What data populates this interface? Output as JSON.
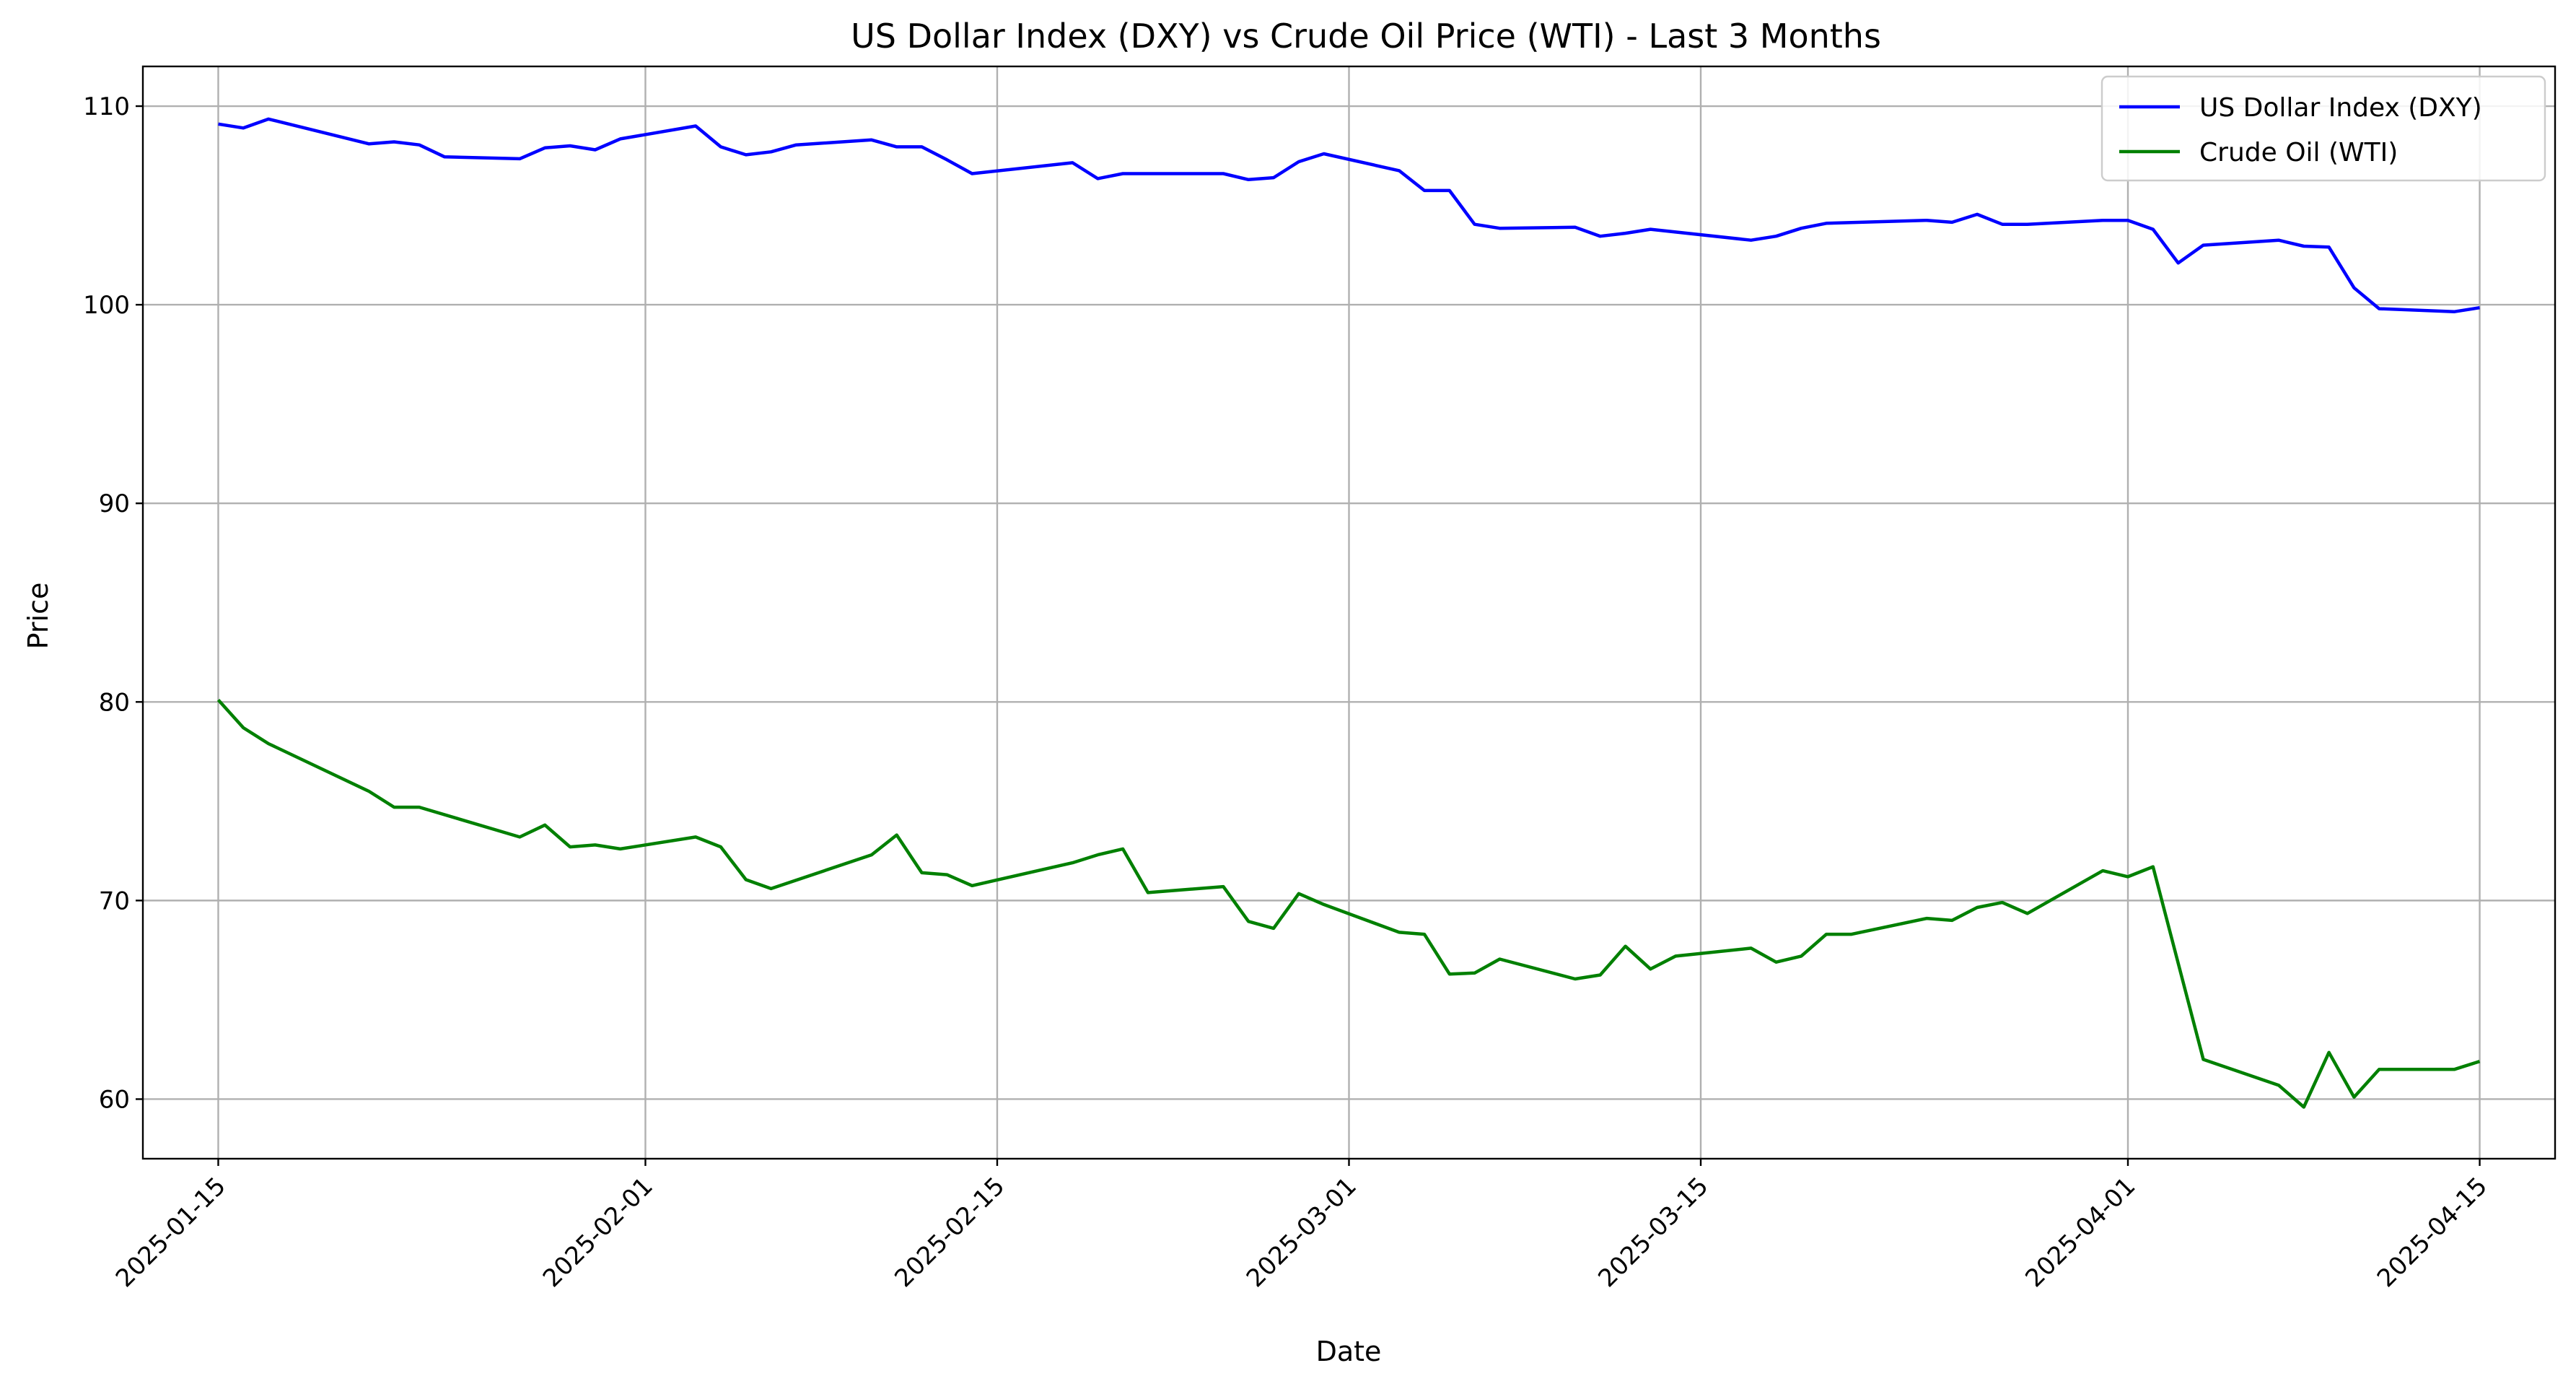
{
  "chart_data": {
    "type": "line",
    "title": "US Dollar Index (DXY) vs Crude Oil Price (WTI) - Last 3 Months",
    "xlabel": "Date",
    "ylabel": "Price",
    "xlim": [
      "2025-01-12",
      "2025-04-18"
    ],
    "ylim": [
      57,
      112
    ],
    "xticks": [
      "2025-01-15",
      "2025-02-01",
      "2025-02-15",
      "2025-03-01",
      "2025-03-15",
      "2025-04-01",
      "2025-04-15"
    ],
    "yticks": [
      60,
      70,
      80,
      90,
      100,
      110
    ],
    "grid": true,
    "legend_position": "top-right",
    "series": [
      {
        "name": "US Dollar Index (DXY)",
        "color": "#0000ff",
        "points": [
          [
            "2025-01-15",
            109.1
          ],
          [
            "2025-01-16",
            108.9
          ],
          [
            "2025-01-17",
            109.35
          ],
          [
            "2025-01-21",
            108.1
          ],
          [
            "2025-01-22",
            108.2
          ],
          [
            "2025-01-23",
            108.05
          ],
          [
            "2025-01-24",
            107.45
          ],
          [
            "2025-01-27",
            107.35
          ],
          [
            "2025-01-28",
            107.9
          ],
          [
            "2025-01-29",
            108.0
          ],
          [
            "2025-01-30",
            107.8
          ],
          [
            "2025-01-31",
            108.35
          ],
          [
            "2025-02-03",
            109.0
          ],
          [
            "2025-02-04",
            107.95
          ],
          [
            "2025-02-05",
            107.55
          ],
          [
            "2025-02-06",
            107.7
          ],
          [
            "2025-02-07",
            108.05
          ],
          [
            "2025-02-10",
            108.3
          ],
          [
            "2025-02-11",
            107.95
          ],
          [
            "2025-02-12",
            107.95
          ],
          [
            "2025-02-13",
            107.3
          ],
          [
            "2025-02-14",
            106.6
          ],
          [
            "2025-02-18",
            107.15
          ],
          [
            "2025-02-19",
            106.35
          ],
          [
            "2025-02-20",
            106.6
          ],
          [
            "2025-02-21",
            106.6
          ],
          [
            "2025-02-24",
            106.6
          ],
          [
            "2025-02-25",
            106.3
          ],
          [
            "2025-02-26",
            106.4
          ],
          [
            "2025-02-27",
            107.2
          ],
          [
            "2025-02-28",
            107.6
          ],
          [
            "2025-03-03",
            106.75
          ],
          [
            "2025-03-04",
            105.75
          ],
          [
            "2025-03-05",
            105.75
          ],
          [
            "2025-03-06",
            104.05
          ],
          [
            "2025-03-07",
            103.85
          ],
          [
            "2025-03-10",
            103.9
          ],
          [
            "2025-03-11",
            103.45
          ],
          [
            "2025-03-12",
            103.6
          ],
          [
            "2025-03-13",
            103.8
          ],
          [
            "2025-03-17",
            103.25
          ],
          [
            "2025-03-18",
            103.45
          ],
          [
            "2025-03-19",
            103.85
          ],
          [
            "2025-03-20",
            104.1
          ],
          [
            "2025-03-24",
            104.25
          ],
          [
            "2025-03-25",
            104.15
          ],
          [
            "2025-03-26",
            104.55
          ],
          [
            "2025-03-27",
            104.05
          ],
          [
            "2025-03-28",
            104.05
          ],
          [
            "2025-03-31",
            104.25
          ],
          [
            "2025-04-01",
            104.25
          ],
          [
            "2025-04-02",
            103.8
          ],
          [
            "2025-04-03",
            102.1
          ],
          [
            "2025-04-04",
            103.0
          ],
          [
            "2025-04-07",
            103.25
          ],
          [
            "2025-04-08",
            102.95
          ],
          [
            "2025-04-09",
            102.9
          ],
          [
            "2025-04-10",
            100.85
          ],
          [
            "2025-04-11",
            99.8
          ],
          [
            "2025-04-14",
            99.65
          ],
          [
            "2025-04-15",
            99.85
          ]
        ]
      },
      {
        "name": "Crude Oil (WTI)",
        "color": "#008000",
        "points": [
          [
            "2025-01-15",
            80.1
          ],
          [
            "2025-01-16",
            78.7
          ],
          [
            "2025-01-17",
            77.9
          ],
          [
            "2025-01-21",
            75.5
          ],
          [
            "2025-01-22",
            74.7
          ],
          [
            "2025-01-23",
            74.7
          ],
          [
            "2025-01-27",
            73.2
          ],
          [
            "2025-01-28",
            73.8
          ],
          [
            "2025-01-29",
            72.7
          ],
          [
            "2025-01-30",
            72.8
          ],
          [
            "2025-01-31",
            72.6
          ],
          [
            "2025-02-03",
            73.2
          ],
          [
            "2025-02-04",
            72.7
          ],
          [
            "2025-02-05",
            71.05
          ],
          [
            "2025-02-06",
            70.6
          ],
          [
            "2025-02-10",
            72.3
          ],
          [
            "2025-02-11",
            73.3
          ],
          [
            "2025-02-12",
            71.4
          ],
          [
            "2025-02-13",
            71.3
          ],
          [
            "2025-02-14",
            70.75
          ],
          [
            "2025-02-18",
            71.9
          ],
          [
            "2025-02-19",
            72.3
          ],
          [
            "2025-02-20",
            72.6
          ],
          [
            "2025-02-21",
            70.4
          ],
          [
            "2025-02-24",
            70.7
          ],
          [
            "2025-02-25",
            68.95
          ],
          [
            "2025-02-26",
            68.6
          ],
          [
            "2025-02-27",
            70.35
          ],
          [
            "2025-02-28",
            69.8
          ],
          [
            "2025-03-03",
            68.4
          ],
          [
            "2025-03-04",
            68.3
          ],
          [
            "2025-03-05",
            66.3
          ],
          [
            "2025-03-06",
            66.35
          ],
          [
            "2025-03-07",
            67.05
          ],
          [
            "2025-03-10",
            66.05
          ],
          [
            "2025-03-11",
            66.25
          ],
          [
            "2025-03-12",
            67.7
          ],
          [
            "2025-03-13",
            66.55
          ],
          [
            "2025-03-14",
            67.2
          ],
          [
            "2025-03-17",
            67.6
          ],
          [
            "2025-03-18",
            66.9
          ],
          [
            "2025-03-19",
            67.2
          ],
          [
            "2025-03-20",
            68.3
          ],
          [
            "2025-03-21",
            68.3
          ],
          [
            "2025-03-24",
            69.1
          ],
          [
            "2025-03-25",
            69.0
          ],
          [
            "2025-03-26",
            69.65
          ],
          [
            "2025-03-27",
            69.9
          ],
          [
            "2025-03-28",
            69.35
          ],
          [
            "2025-03-31",
            71.5
          ],
          [
            "2025-04-01",
            71.2
          ],
          [
            "2025-04-02",
            71.7
          ],
          [
            "2025-04-04",
            62.0
          ],
          [
            "2025-04-07",
            60.7
          ],
          [
            "2025-04-08",
            59.6
          ],
          [
            "2025-04-09",
            62.35
          ],
          [
            "2025-04-10",
            60.1
          ],
          [
            "2025-04-11",
            61.5
          ],
          [
            "2025-04-14",
            61.5
          ],
          [
            "2025-04-15",
            61.9
          ]
        ]
      }
    ]
  }
}
